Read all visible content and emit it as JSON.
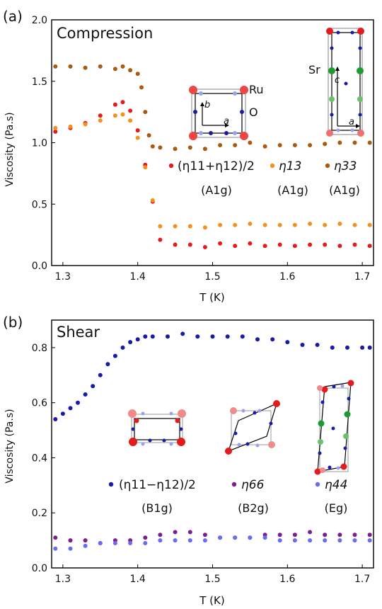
{
  "chart_data": [
    {
      "type": "scatter",
      "panel_label": "(a)",
      "title": "Compression",
      "xlabel": "T (K)",
      "ylabel": "Viscosity (Pa.s)",
      "xlim": [
        1.285,
        1.715
      ],
      "ylim": [
        0.0,
        2.0
      ],
      "xticks": [
        1.3,
        1.4,
        1.5,
        1.6,
        1.7
      ],
      "xtick_labels": [
        "1.3",
        "1.4",
        "1.5",
        "1.6",
        "1.7"
      ],
      "yticks": [
        0.0,
        0.5,
        1.0,
        1.5,
        2.0
      ],
      "ytick_labels": [
        "0.0",
        "0.5",
        "1.0",
        "1.5",
        "2.0"
      ],
      "grid": false,
      "legend": "right-middle",
      "series": [
        {
          "name": "(η11+η12)/2",
          "mode": "A1g",
          "color": "#e41a1c",
          "x": [
            1.29,
            1.31,
            1.33,
            1.35,
            1.37,
            1.38,
            1.39,
            1.4,
            1.41,
            1.42,
            1.43,
            1.45,
            1.47,
            1.49,
            1.51,
            1.53,
            1.55,
            1.57,
            1.59,
            1.61,
            1.63,
            1.65,
            1.67,
            1.69,
            1.71
          ],
          "y": [
            1.09,
            1.12,
            1.16,
            1.22,
            1.31,
            1.33,
            1.26,
            1.1,
            0.82,
            0.52,
            0.21,
            0.17,
            0.17,
            0.15,
            0.18,
            0.16,
            0.18,
            0.16,
            0.17,
            0.16,
            0.17,
            0.17,
            0.16,
            0.17,
            0.16
          ]
        },
        {
          "name": "η13",
          "mode": "A1g",
          "color": "#f5901e",
          "x": [
            1.29,
            1.31,
            1.33,
            1.35,
            1.37,
            1.38,
            1.39,
            1.4,
            1.41,
            1.42,
            1.43,
            1.45,
            1.47,
            1.49,
            1.51,
            1.53,
            1.55,
            1.57,
            1.59,
            1.61,
            1.63,
            1.65,
            1.67,
            1.69,
            1.71
          ],
          "y": [
            1.12,
            1.13,
            1.15,
            1.18,
            1.22,
            1.23,
            1.18,
            1.04,
            0.8,
            0.53,
            0.32,
            0.32,
            0.32,
            0.31,
            0.33,
            0.33,
            0.34,
            0.33,
            0.33,
            0.33,
            0.34,
            0.33,
            0.34,
            0.33,
            0.33
          ]
        },
        {
          "name": "η33",
          "mode": "A1g",
          "color": "#a85a12",
          "x": [
            1.29,
            1.31,
            1.33,
            1.35,
            1.37,
            1.38,
            1.39,
            1.4,
            1.405,
            1.41,
            1.415,
            1.42,
            1.43,
            1.45,
            1.47,
            1.49,
            1.51,
            1.53,
            1.55,
            1.57,
            1.59,
            1.61,
            1.63,
            1.65,
            1.67,
            1.69,
            1.71
          ],
          "y": [
            1.62,
            1.62,
            1.61,
            1.62,
            1.6,
            1.62,
            1.59,
            1.56,
            1.45,
            1.25,
            1.06,
            0.97,
            0.96,
            0.95,
            0.96,
            0.95,
            0.98,
            0.98,
            1.0,
            0.97,
            0.98,
            0.98,
            0.98,
            0.99,
            1.0,
            1.0,
            1.0
          ]
        }
      ],
      "legend_labels": {
        "s1": "(η11+η12)/2",
        "s2": "η13",
        "s3": "η33",
        "m1": "(A1g)",
        "m2": "(A1g)",
        "m3": "(A1g)"
      },
      "annotations": {
        "ru": "Ru",
        "o": "O",
        "sr": "Sr",
        "axis_a": "a",
        "axis_b": "b",
        "axis_c": "c"
      }
    },
    {
      "type": "scatter",
      "panel_label": "(b)",
      "title": "Shear",
      "xlabel": "T (K)",
      "ylabel": "Viscosity (Pa.s)",
      "xlim": [
        1.285,
        1.715
      ],
      "ylim": [
        0.0,
        0.9
      ],
      "xticks": [
        1.3,
        1.4,
        1.5,
        1.6,
        1.7
      ],
      "xtick_labels": [
        "1.3",
        "1.4",
        "1.5",
        "1.6",
        "1.7"
      ],
      "yticks": [
        0.0,
        0.2,
        0.4,
        0.6,
        0.8
      ],
      "ytick_labels": [
        "0.0",
        "0.2",
        "0.4",
        "0.6",
        "0.8"
      ],
      "grid": false,
      "legend": "bottom",
      "series": [
        {
          "name": "(η11−η12)/2",
          "mode": "B1g",
          "color": "#1a1aa6",
          "x": [
            1.29,
            1.3,
            1.31,
            1.32,
            1.33,
            1.34,
            1.35,
            1.36,
            1.37,
            1.38,
            1.39,
            1.4,
            1.41,
            1.42,
            1.44,
            1.46,
            1.48,
            1.5,
            1.52,
            1.54,
            1.56,
            1.58,
            1.6,
            1.62,
            1.64,
            1.66,
            1.68,
            1.7,
            1.71
          ],
          "y": [
            0.54,
            0.56,
            0.58,
            0.6,
            0.63,
            0.66,
            0.7,
            0.74,
            0.77,
            0.8,
            0.82,
            0.83,
            0.84,
            0.84,
            0.84,
            0.85,
            0.84,
            0.84,
            0.84,
            0.84,
            0.83,
            0.83,
            0.82,
            0.81,
            0.81,
            0.8,
            0.8,
            0.8,
            0.8
          ]
        },
        {
          "name": "η66",
          "mode": "B2g",
          "color": "#7b1f8a",
          "x": [
            1.29,
            1.31,
            1.33,
            1.35,
            1.37,
            1.39,
            1.41,
            1.43,
            1.45,
            1.47,
            1.49,
            1.51,
            1.53,
            1.55,
            1.57,
            1.59,
            1.61,
            1.63,
            1.65,
            1.67,
            1.69,
            1.71
          ],
          "y": [
            0.11,
            0.1,
            0.1,
            0.09,
            0.1,
            0.1,
            0.11,
            0.12,
            0.13,
            0.13,
            0.12,
            0.11,
            0.11,
            0.11,
            0.12,
            0.12,
            0.12,
            0.13,
            0.12,
            0.12,
            0.12,
            0.12
          ]
        },
        {
          "name": "η44",
          "mode": "Eg",
          "color": "#6b6bf0",
          "x": [
            1.29,
            1.31,
            1.33,
            1.35,
            1.37,
            1.39,
            1.41,
            1.43,
            1.45,
            1.47,
            1.49,
            1.51,
            1.53,
            1.55,
            1.57,
            1.59,
            1.61,
            1.63,
            1.65,
            1.67,
            1.69,
            1.71
          ],
          "y": [
            0.07,
            0.07,
            0.08,
            0.09,
            0.09,
            0.09,
            0.09,
            0.1,
            0.1,
            0.1,
            0.1,
            0.11,
            0.11,
            0.11,
            0.11,
            0.1,
            0.1,
            0.1,
            0.1,
            0.1,
            0.1,
            0.1
          ]
        }
      ],
      "legend_labels": {
        "s1": "(η11−η12)/2",
        "s2": "η66",
        "s3": "η44",
        "m1": "(B1g)",
        "m2": "(B2g)",
        "m3": "(Eg)"
      }
    }
  ]
}
